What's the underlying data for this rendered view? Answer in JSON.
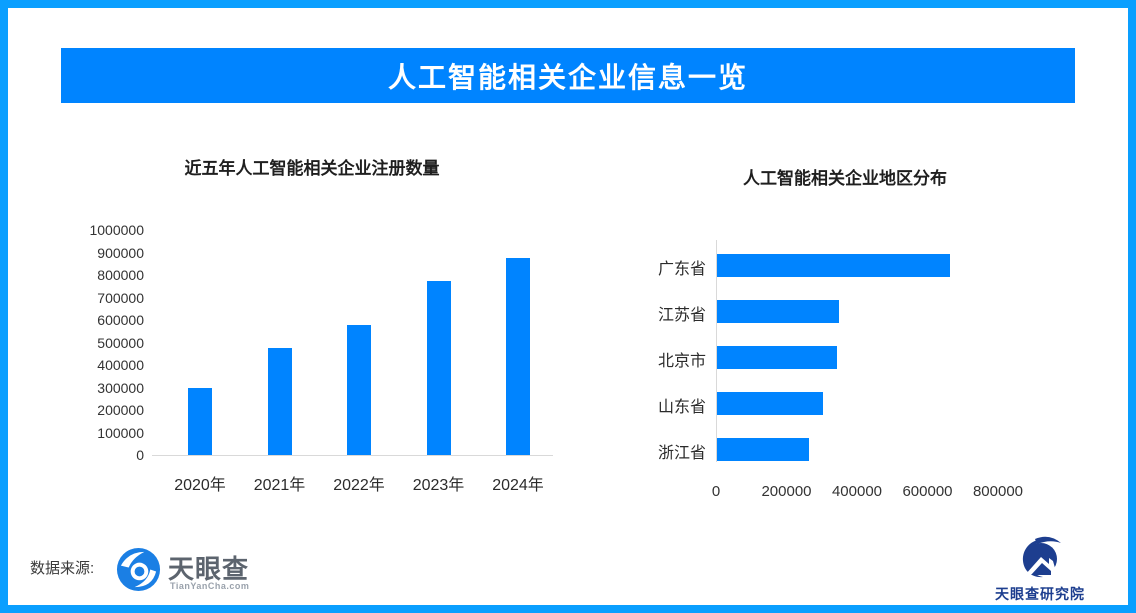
{
  "header": {
    "title": "人工智能相关企业信息一览"
  },
  "colors": {
    "accent_blue": "#0084ff",
    "frame_border": "#0a9fff",
    "axis_line": "#d9d9d9",
    "title_text": "#1f1f1f",
    "tick_text": "#333333",
    "tyc_gray": "#5c646e",
    "institute_navy": "#1d3e8f"
  },
  "chart_data": [
    {
      "type": "bar",
      "orientation": "vertical",
      "title": "近五年人工智能相关企业注册数量",
      "categories": [
        "2020年",
        "2021年",
        "2022年",
        "2023年",
        "2024年"
      ],
      "values": [
        300000,
        475000,
        580000,
        775000,
        875000
      ],
      "xlabel": "",
      "ylabel": "",
      "ylim": [
        0,
        1000000
      ],
      "ytick_step": 100000,
      "bar_color": "#0084ff",
      "grid": false,
      "legend": "none"
    },
    {
      "type": "bar",
      "orientation": "horizontal",
      "title": "人工智能相关企业地区分布",
      "categories": [
        "广东省",
        "江苏省",
        "北京市",
        "山东省",
        "浙江省"
      ],
      "values": [
        660000,
        345000,
        340000,
        300000,
        260000
      ],
      "xlabel": "",
      "ylabel": "",
      "xlim": [
        0,
        800000
      ],
      "xtick_step": 200000,
      "bar_color": "#0084ff",
      "grid": false,
      "legend": "none"
    }
  ],
  "footer": {
    "source_label": "数据来源:",
    "tyc_logo_name": "天眼查",
    "tyc_logo_sub": "TianYanCha.com",
    "institute_name": "天眼查研究院"
  }
}
